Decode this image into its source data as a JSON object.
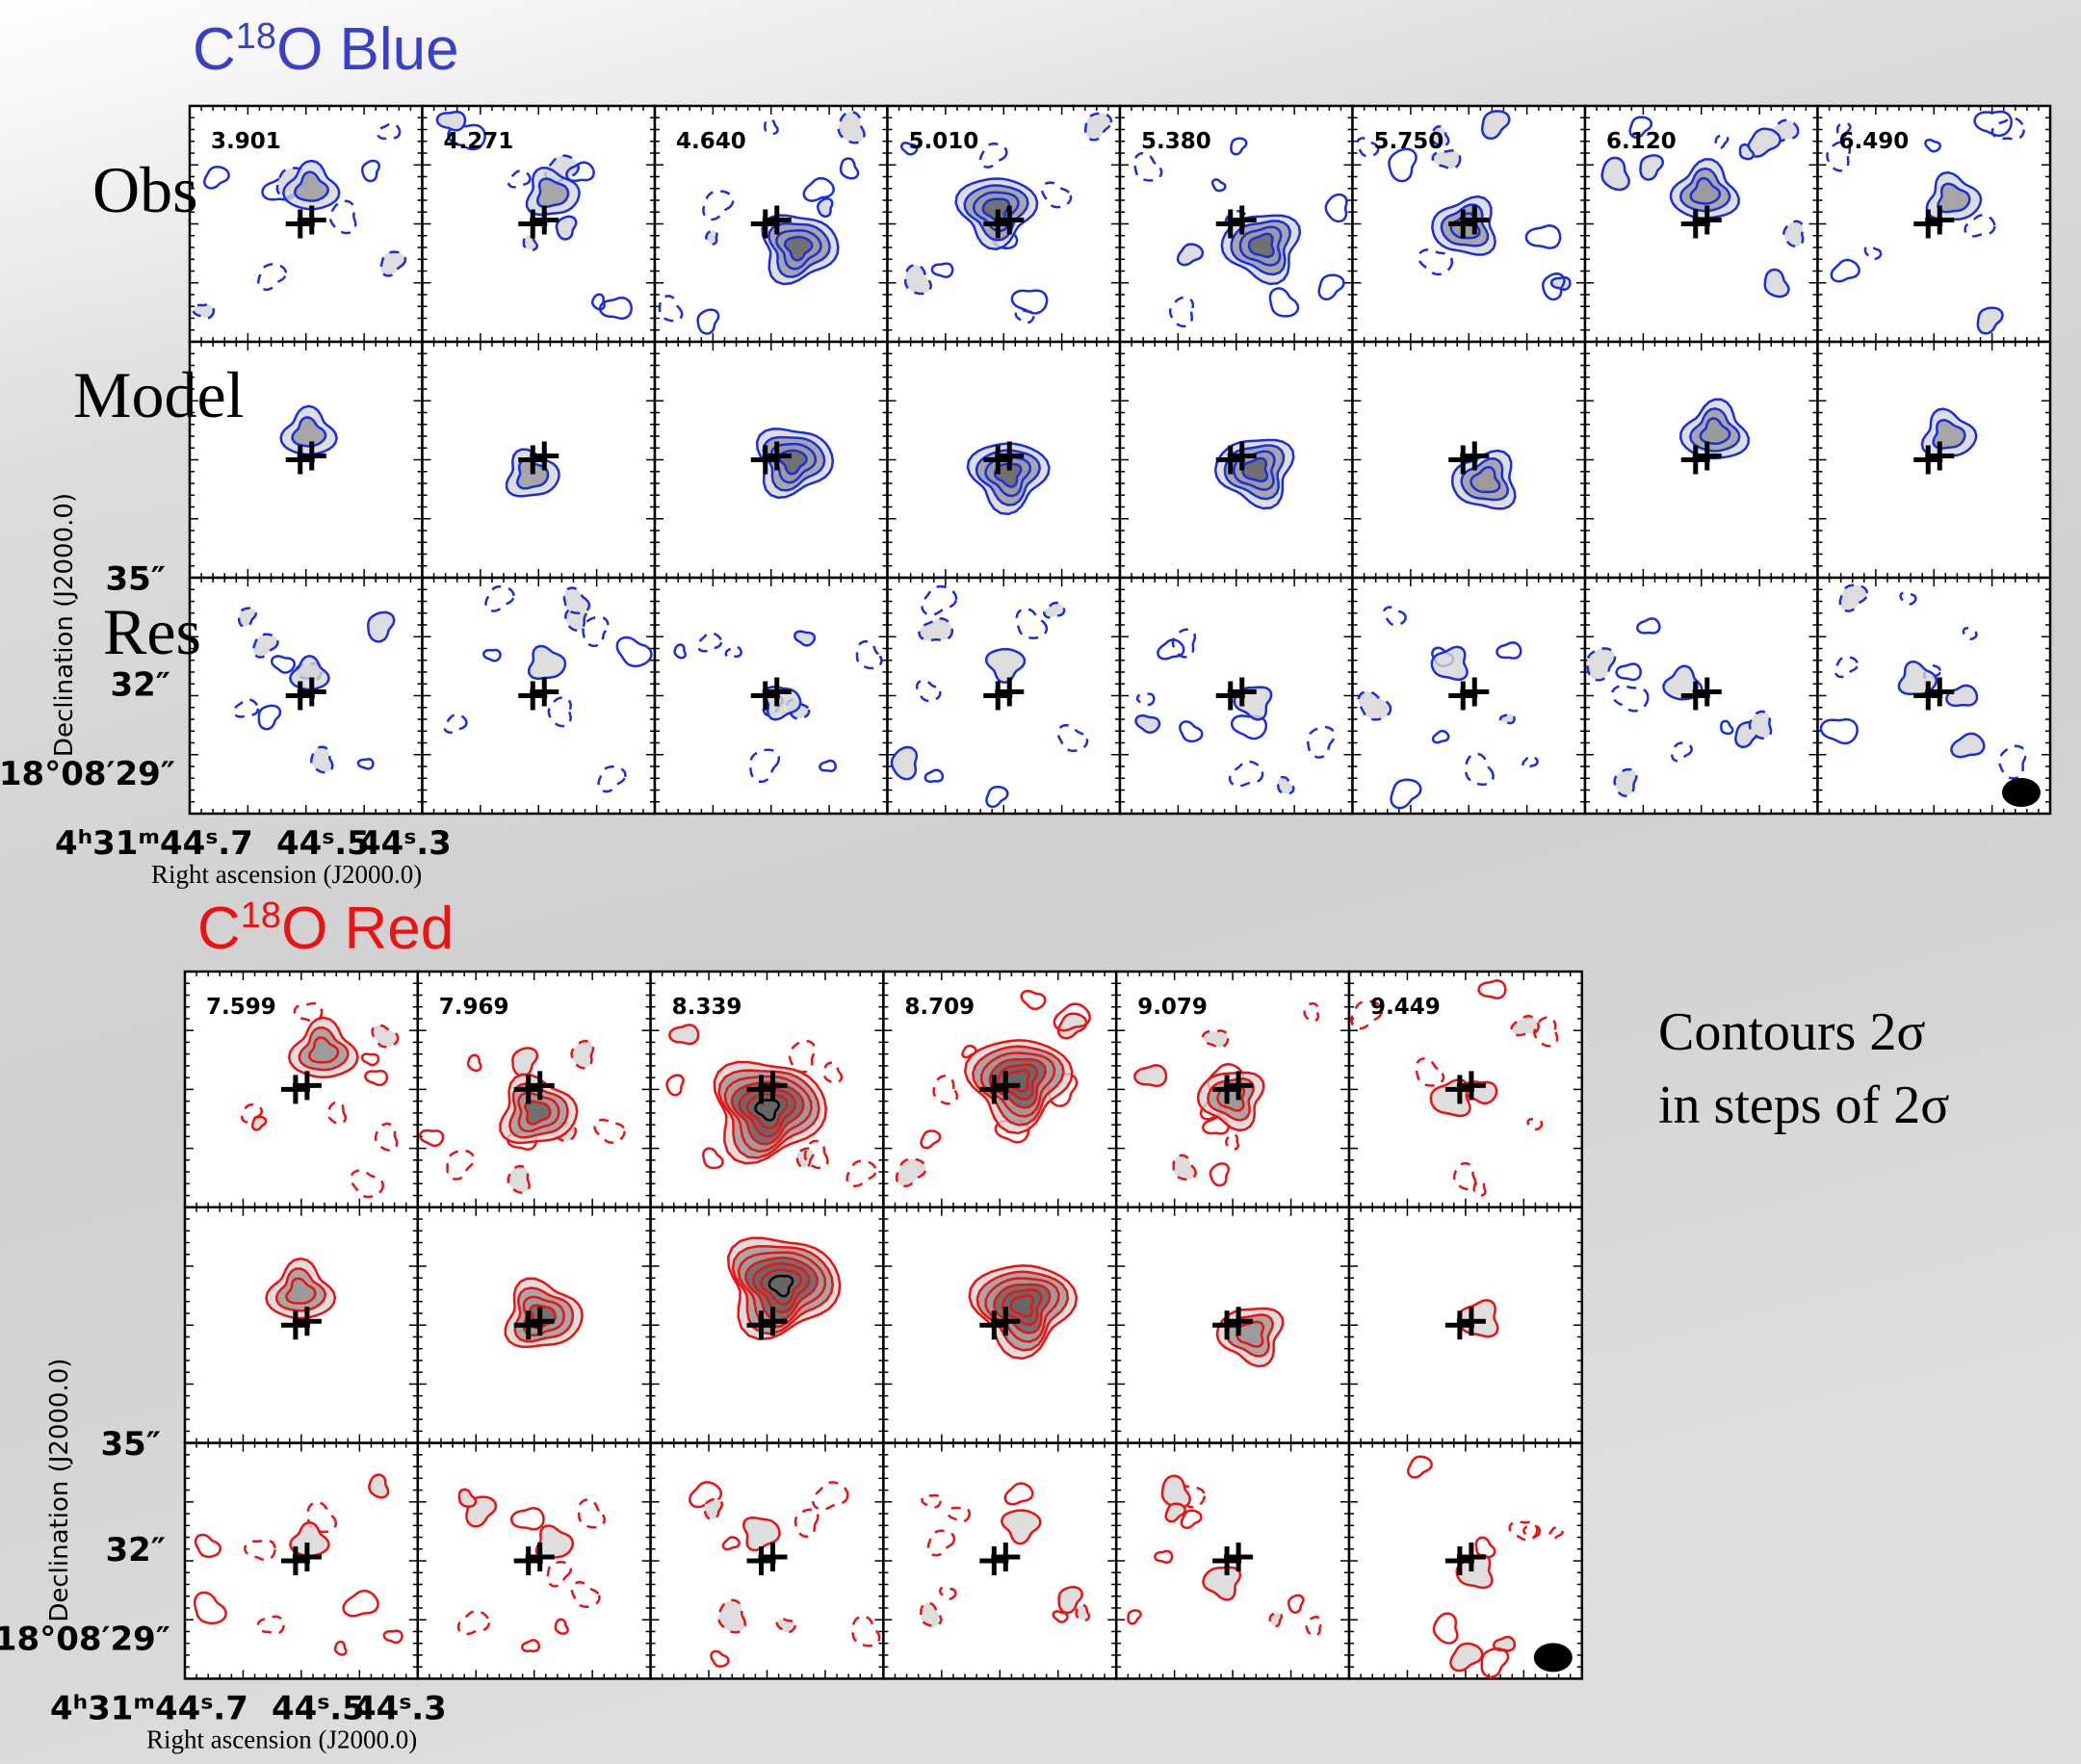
{
  "blue": {
    "title": "C",
    "title_sup": "18",
    "title_rest": "O Blue",
    "velocities": [
      "3.901",
      "4.271",
      "4.640",
      "5.010",
      "5.380",
      "5.750",
      "6.120",
      "6.490"
    ],
    "rows": [
      "Obs",
      "Model",
      "Res"
    ],
    "dec_label": "Declination (J2000.0)",
    "dec_ticks": [
      "35″",
      "32″",
      "18°08′29″"
    ],
    "ra_ticks": [
      "4ʰ31ᵐ44ˢ.7",
      "44ˢ.5",
      "44ˢ.3"
    ],
    "ra_label": "Right ascension (J2000.0)"
  },
  "red": {
    "title": "C",
    "title_sup": "18",
    "title_rest": "O Red",
    "velocities": [
      "7.599",
      "7.969",
      "8.339",
      "8.709",
      "9.079",
      "9.449"
    ],
    "dec_label": "Declination (J2000.0)",
    "dec_ticks": [
      "35″",
      "32″",
      "18°08′29″"
    ],
    "ra_ticks": [
      "4ʰ31ᵐ44ˢ.7",
      "44ˢ.5",
      "44ˢ.3"
    ],
    "ra_label": "Right ascension (J2000.0)"
  },
  "note": [
    "Contours 2σ",
    "in steps of 2σ"
  ]
}
